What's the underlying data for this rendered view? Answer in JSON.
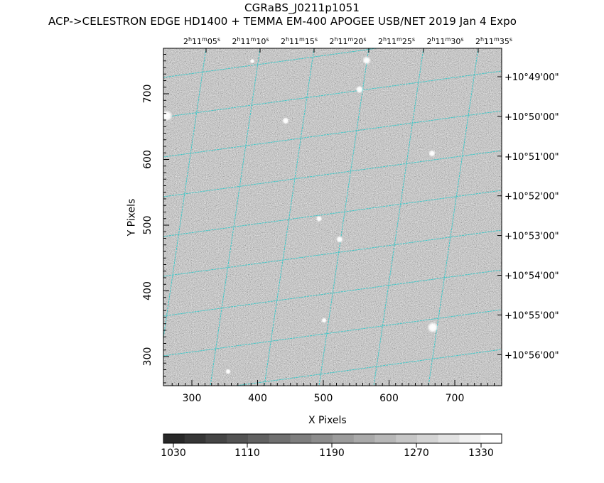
{
  "header": {
    "object_name": "CGRaBS_J0211p1051",
    "instrument_line": "ACP->CELESTRON EDGE HD1400 + TEMMA EM-400 APOGEE USB/NET   2019 Jan  4     Expo"
  },
  "axes": {
    "x_label": "X Pixels",
    "y_label": "Y Pixels",
    "x_ticks": [
      "300",
      "400",
      "500",
      "600",
      "700"
    ],
    "y_ticks": [
      "300",
      "400",
      "500",
      "600",
      "700"
    ],
    "ra_ticks": [
      {
        "h": "2",
        "m": "11",
        "s": "05"
      },
      {
        "h": "2",
        "m": "11",
        "s": "10"
      },
      {
        "h": "2",
        "m": "11",
        "s": "15"
      },
      {
        "h": "2",
        "m": "11",
        "s": "20"
      },
      {
        "h": "2",
        "m": "11",
        "s": "25"
      },
      {
        "h": "2",
        "m": "11",
        "s": "30"
      },
      {
        "h": "2",
        "m": "11",
        "s": "35"
      }
    ],
    "dec_ticks": [
      "+10°49'00\"",
      "+10°50'00\"",
      "+10°51'00\"",
      "+10°52'00\"",
      "+10°53'00\"",
      "+10°54'00\"",
      "+10°55'00\"",
      "+10°56'00\""
    ]
  },
  "colorbar": {
    "labels": [
      "1030",
      "1110",
      "1190",
      "1270",
      "1330"
    ],
    "steps": 16
  },
  "colors": {
    "grid": "#3fc7c7",
    "background": "#ffffff",
    "frame": "#000000"
  }
}
